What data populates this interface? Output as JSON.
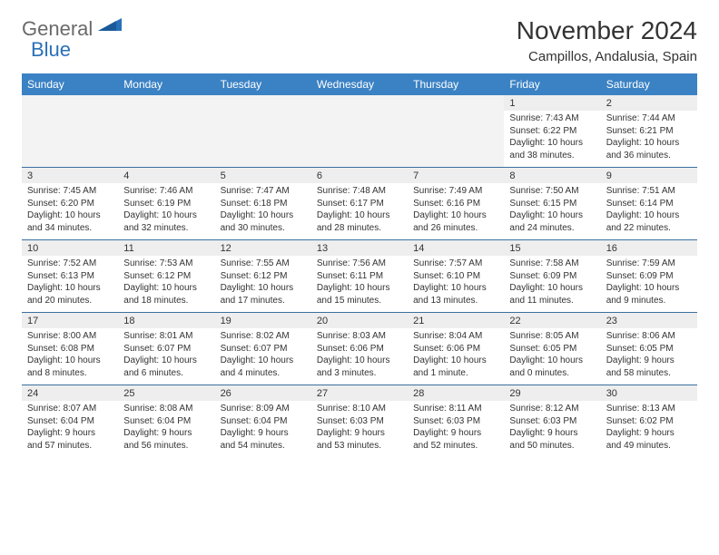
{
  "logo": {
    "text1": "General",
    "text2": "Blue"
  },
  "title": "November 2024",
  "location": "Campillos, Andalusia, Spain",
  "colors": {
    "header_bg": "#3b82c4",
    "header_text": "#ffffff",
    "row_divider": "#3b6fa0",
    "daynum_bg": "#eeeeee",
    "empty_bg": "#f3f3f3",
    "logo_gray": "#6a6a6a",
    "logo_blue": "#2a70b8"
  },
  "day_headers": [
    "Sunday",
    "Monday",
    "Tuesday",
    "Wednesday",
    "Thursday",
    "Friday",
    "Saturday"
  ],
  "weeks": [
    {
      "nums": [
        "",
        "",
        "",
        "",
        "",
        "1",
        "2"
      ],
      "cells": [
        null,
        null,
        null,
        null,
        null,
        {
          "sunrise": "Sunrise: 7:43 AM",
          "sunset": "Sunset: 6:22 PM",
          "daylight": "Daylight: 10 hours and 38 minutes."
        },
        {
          "sunrise": "Sunrise: 7:44 AM",
          "sunset": "Sunset: 6:21 PM",
          "daylight": "Daylight: 10 hours and 36 minutes."
        }
      ]
    },
    {
      "nums": [
        "3",
        "4",
        "5",
        "6",
        "7",
        "8",
        "9"
      ],
      "cells": [
        {
          "sunrise": "Sunrise: 7:45 AM",
          "sunset": "Sunset: 6:20 PM",
          "daylight": "Daylight: 10 hours and 34 minutes."
        },
        {
          "sunrise": "Sunrise: 7:46 AM",
          "sunset": "Sunset: 6:19 PM",
          "daylight": "Daylight: 10 hours and 32 minutes."
        },
        {
          "sunrise": "Sunrise: 7:47 AM",
          "sunset": "Sunset: 6:18 PM",
          "daylight": "Daylight: 10 hours and 30 minutes."
        },
        {
          "sunrise": "Sunrise: 7:48 AM",
          "sunset": "Sunset: 6:17 PM",
          "daylight": "Daylight: 10 hours and 28 minutes."
        },
        {
          "sunrise": "Sunrise: 7:49 AM",
          "sunset": "Sunset: 6:16 PM",
          "daylight": "Daylight: 10 hours and 26 minutes."
        },
        {
          "sunrise": "Sunrise: 7:50 AM",
          "sunset": "Sunset: 6:15 PM",
          "daylight": "Daylight: 10 hours and 24 minutes."
        },
        {
          "sunrise": "Sunrise: 7:51 AM",
          "sunset": "Sunset: 6:14 PM",
          "daylight": "Daylight: 10 hours and 22 minutes."
        }
      ]
    },
    {
      "nums": [
        "10",
        "11",
        "12",
        "13",
        "14",
        "15",
        "16"
      ],
      "cells": [
        {
          "sunrise": "Sunrise: 7:52 AM",
          "sunset": "Sunset: 6:13 PM",
          "daylight": "Daylight: 10 hours and 20 minutes."
        },
        {
          "sunrise": "Sunrise: 7:53 AM",
          "sunset": "Sunset: 6:12 PM",
          "daylight": "Daylight: 10 hours and 18 minutes."
        },
        {
          "sunrise": "Sunrise: 7:55 AM",
          "sunset": "Sunset: 6:12 PM",
          "daylight": "Daylight: 10 hours and 17 minutes."
        },
        {
          "sunrise": "Sunrise: 7:56 AM",
          "sunset": "Sunset: 6:11 PM",
          "daylight": "Daylight: 10 hours and 15 minutes."
        },
        {
          "sunrise": "Sunrise: 7:57 AM",
          "sunset": "Sunset: 6:10 PM",
          "daylight": "Daylight: 10 hours and 13 minutes."
        },
        {
          "sunrise": "Sunrise: 7:58 AM",
          "sunset": "Sunset: 6:09 PM",
          "daylight": "Daylight: 10 hours and 11 minutes."
        },
        {
          "sunrise": "Sunrise: 7:59 AM",
          "sunset": "Sunset: 6:09 PM",
          "daylight": "Daylight: 10 hours and 9 minutes."
        }
      ]
    },
    {
      "nums": [
        "17",
        "18",
        "19",
        "20",
        "21",
        "22",
        "23"
      ],
      "cells": [
        {
          "sunrise": "Sunrise: 8:00 AM",
          "sunset": "Sunset: 6:08 PM",
          "daylight": "Daylight: 10 hours and 8 minutes."
        },
        {
          "sunrise": "Sunrise: 8:01 AM",
          "sunset": "Sunset: 6:07 PM",
          "daylight": "Daylight: 10 hours and 6 minutes."
        },
        {
          "sunrise": "Sunrise: 8:02 AM",
          "sunset": "Sunset: 6:07 PM",
          "daylight": "Daylight: 10 hours and 4 minutes."
        },
        {
          "sunrise": "Sunrise: 8:03 AM",
          "sunset": "Sunset: 6:06 PM",
          "daylight": "Daylight: 10 hours and 3 minutes."
        },
        {
          "sunrise": "Sunrise: 8:04 AM",
          "sunset": "Sunset: 6:06 PM",
          "daylight": "Daylight: 10 hours and 1 minute."
        },
        {
          "sunrise": "Sunrise: 8:05 AM",
          "sunset": "Sunset: 6:05 PM",
          "daylight": "Daylight: 10 hours and 0 minutes."
        },
        {
          "sunrise": "Sunrise: 8:06 AM",
          "sunset": "Sunset: 6:05 PM",
          "daylight": "Daylight: 9 hours and 58 minutes."
        }
      ]
    },
    {
      "nums": [
        "24",
        "25",
        "26",
        "27",
        "28",
        "29",
        "30"
      ],
      "cells": [
        {
          "sunrise": "Sunrise: 8:07 AM",
          "sunset": "Sunset: 6:04 PM",
          "daylight": "Daylight: 9 hours and 57 minutes."
        },
        {
          "sunrise": "Sunrise: 8:08 AM",
          "sunset": "Sunset: 6:04 PM",
          "daylight": "Daylight: 9 hours and 56 minutes."
        },
        {
          "sunrise": "Sunrise: 8:09 AM",
          "sunset": "Sunset: 6:04 PM",
          "daylight": "Daylight: 9 hours and 54 minutes."
        },
        {
          "sunrise": "Sunrise: 8:10 AM",
          "sunset": "Sunset: 6:03 PM",
          "daylight": "Daylight: 9 hours and 53 minutes."
        },
        {
          "sunrise": "Sunrise: 8:11 AM",
          "sunset": "Sunset: 6:03 PM",
          "daylight": "Daylight: 9 hours and 52 minutes."
        },
        {
          "sunrise": "Sunrise: 8:12 AM",
          "sunset": "Sunset: 6:03 PM",
          "daylight": "Daylight: 9 hours and 50 minutes."
        },
        {
          "sunrise": "Sunrise: 8:13 AM",
          "sunset": "Sunset: 6:02 PM",
          "daylight": "Daylight: 9 hours and 49 minutes."
        }
      ]
    }
  ]
}
